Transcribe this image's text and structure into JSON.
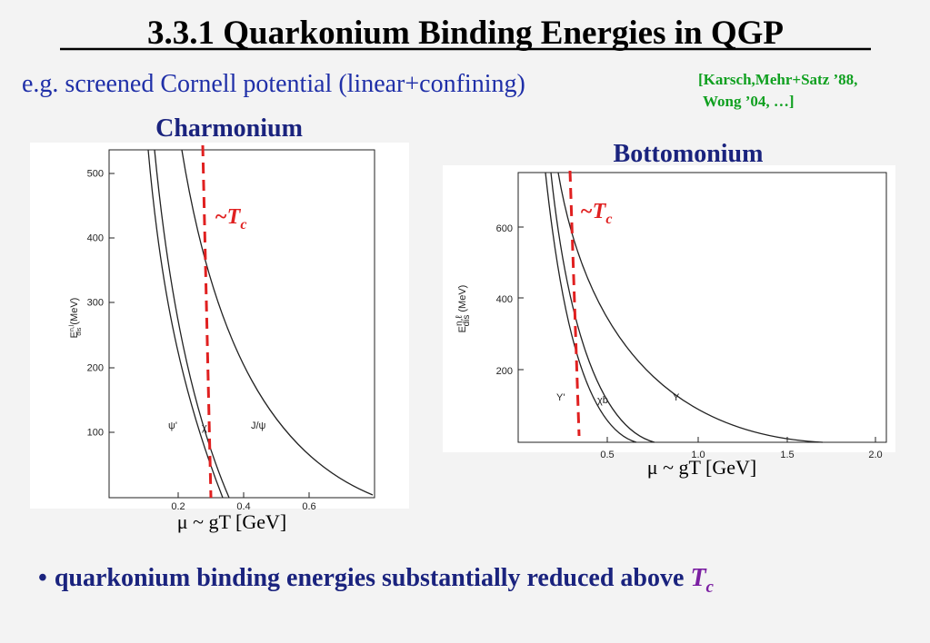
{
  "header": {
    "title": "3.3.1 Quarkonium Binding Energies in QGP",
    "subtitle": "e.g. screened Cornell potential (linear+confining)",
    "reference": [
      "[Karsch,Mehr+Satz ’88,",
      "Wong ’04, …]"
    ]
  },
  "panels": [
    {
      "title": "Charmonium",
      "y_label": "E",
      "y_label_sup": "n,l",
      "y_label_sub": "dis",
      "y_unit": "(MeV)",
      "yticks": [
        "500",
        "400",
        "300",
        "200",
        "100"
      ],
      "xticks": [
        "0.2",
        "0.4",
        "0.6"
      ],
      "curve_labels": [
        "ψ'",
        "χ",
        "J/ψ"
      ],
      "tc_label": "~T",
      "tc_sub": "c",
      "x_label": "μ ~ gT   [GeV]"
    },
    {
      "title": "Bottomonium",
      "y_label": "E",
      "y_label_sup": "n,ℓ",
      "y_label_sub": "dis",
      "y_unit": "(MeV)",
      "yticks": [
        "600",
        "400",
        "200"
      ],
      "xticks": [
        "0.5",
        "1.0",
        "1.5",
        "2.0"
      ],
      "curve_labels": [
        "Υ'",
        "χb",
        "Υ"
      ],
      "tc_label": "~T",
      "tc_sub": "c",
      "x_label": "μ ~ gT   [GeV]"
    }
  ],
  "bullet": {
    "marker": "•",
    "text": "quarkonium binding energies substantially reduced above ",
    "em": "T",
    "sub": "c"
  }
}
